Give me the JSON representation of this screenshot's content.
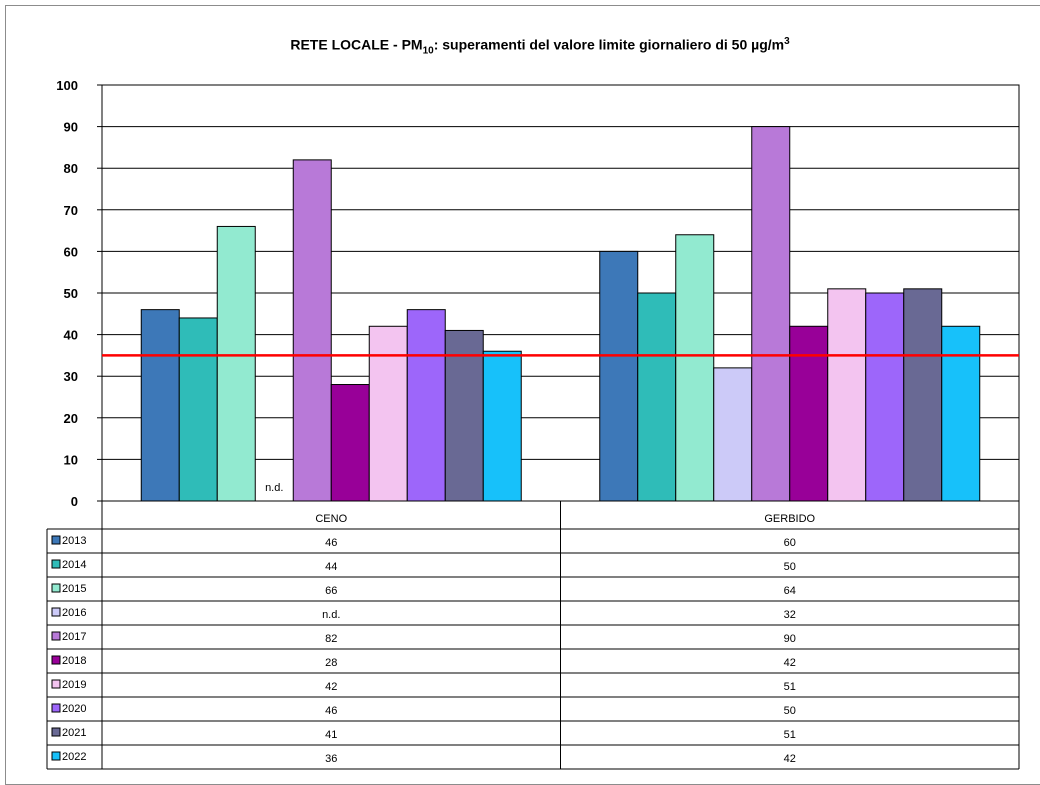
{
  "chart_data": {
    "type": "bar",
    "title": {
      "prefix": "RETE LOCALE  - PM",
      "sub": "10",
      "middle": ": superamenti  del valore  limite giornaliero  di 50 µg/m",
      "sup": "3"
    },
    "categories": [
      "CENO",
      "GERBIDO"
    ],
    "ylim": [
      0,
      100
    ],
    "yticks": [
      0,
      10,
      20,
      30,
      40,
      50,
      60,
      70,
      80,
      90,
      100
    ],
    "grid": true,
    "reference_line": {
      "value": 35,
      "color": "#ff0000"
    },
    "missing_label": "n.d.",
    "series": [
      {
        "name": "2013",
        "color": "#3d78b8",
        "values": [
          46,
          60
        ],
        "labels": [
          "46",
          "60"
        ]
      },
      {
        "name": "2014",
        "color": "#2fbcb8",
        "values": [
          44,
          50
        ],
        "labels": [
          "44",
          "50"
        ]
      },
      {
        "name": "2015",
        "color": "#92ead0",
        "values": [
          66,
          64
        ],
        "labels": [
          "66",
          "64"
        ]
      },
      {
        "name": "2016",
        "color": "#cccaf8",
        "values": [
          null,
          32
        ],
        "labels": [
          "n.d.",
          "32"
        ]
      },
      {
        "name": "2017",
        "color": "#b879d8",
        "values": [
          82,
          90
        ],
        "labels": [
          "82",
          "90"
        ]
      },
      {
        "name": "2018",
        "color": "#980098",
        "values": [
          28,
          42
        ],
        "labels": [
          "28",
          "42"
        ]
      },
      {
        "name": "2019",
        "color": "#f3c4f0",
        "values": [
          42,
          51
        ],
        "labels": [
          "42",
          "51"
        ]
      },
      {
        "name": "2020",
        "color": "#9d66fa",
        "values": [
          46,
          50
        ],
        "labels": [
          "46",
          "50"
        ]
      },
      {
        "name": "2021",
        "color": "#696994",
        "values": [
          41,
          51
        ],
        "labels": [
          "41",
          "51"
        ]
      },
      {
        "name": "2022",
        "color": "#17c1fa",
        "values": [
          36,
          42
        ],
        "labels": [
          "36",
          "42"
        ]
      }
    ]
  }
}
